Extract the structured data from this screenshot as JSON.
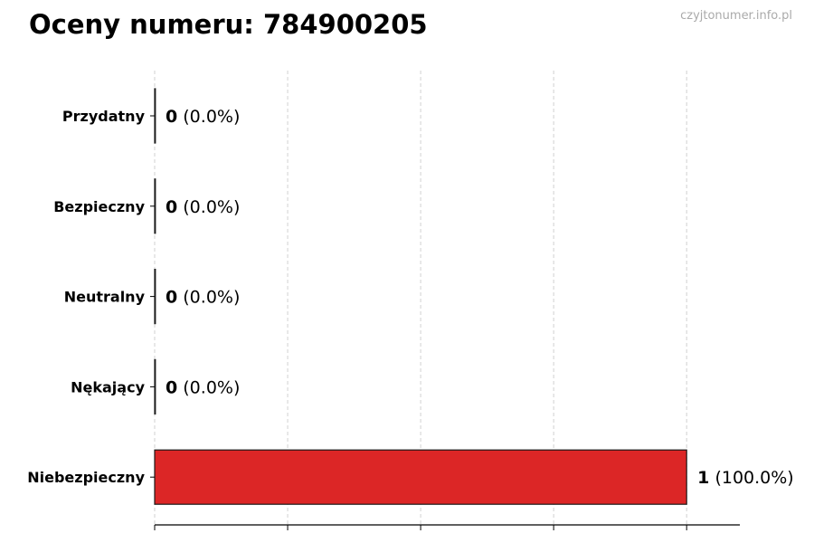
{
  "chart_data": {
    "type": "bar",
    "orientation": "horizontal",
    "title": "Oceny numeru: 784900205",
    "watermark": "czyjtonumer.info.pl",
    "categories": [
      "Przydatny",
      "Bezpieczny",
      "Neutralny",
      "Nękający",
      "Niebezpieczny"
    ],
    "values": [
      0,
      0,
      0,
      0,
      1
    ],
    "percent_labels": [
      "(0.0%)",
      "(0.0%)",
      "(0.0%)",
      "(0.0%)",
      "(100.0%)"
    ],
    "xlim": [
      0,
      1.1
    ],
    "xticks": [
      0,
      0.25,
      0.5,
      0.75,
      1.0
    ],
    "grid": "vertical dashed",
    "xlabel": "",
    "ylabel": "",
    "colors": {
      "bar": "#dc2626",
      "edge": "#1a1a1a",
      "grid": "#d0d0d0"
    }
  }
}
